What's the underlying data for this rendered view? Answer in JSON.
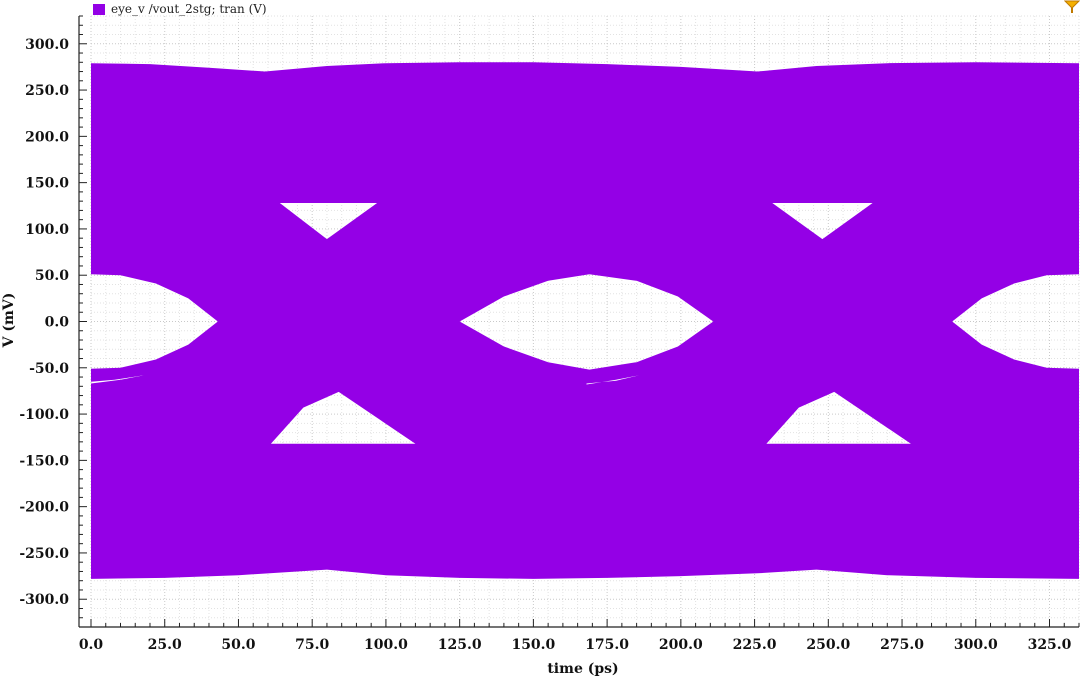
{
  "legend": {
    "label": "eye_v /vout_2stg; tran (V)",
    "color": "#9400e6"
  },
  "marker_icon": "cursor-marker-icon",
  "chart_data": {
    "type": "area",
    "subtype": "eye-diagram",
    "x_label": "time (ps)",
    "y_label": "V (mV)",
    "x_ticks": [
      "0.0",
      "25.0",
      "50.0",
      "75.0",
      "100.0",
      "125.0",
      "150.0",
      "175.0",
      "200.0",
      "225.0",
      "250.0",
      "275.0",
      "300.0",
      "325.0"
    ],
    "x_tick_values": [
      0,
      25,
      50,
      75,
      100,
      125,
      150,
      175,
      200,
      225,
      250,
      275,
      300,
      325
    ],
    "y_ticks": [
      "300.0",
      "250.0",
      "200.0",
      "150.0",
      "100.0",
      "50.0",
      "0.0",
      "-50.0",
      "-100.0",
      "-150.0",
      "-200.0",
      "-250.0",
      "-300.0"
    ],
    "y_tick_values": [
      300,
      250,
      200,
      150,
      100,
      50,
      0,
      -50,
      -100,
      -150,
      -200,
      -250,
      -300
    ],
    "xlim": [
      0,
      335
    ],
    "ylim": [
      -330,
      330
    ],
    "grid": true,
    "series": [
      {
        "name": "eye_v /vout_2stg; tran (V)",
        "color": "#9400e6",
        "upper_envelope": [
          [
            0,
            279
          ],
          [
            20,
            278
          ],
          [
            40,
            274
          ],
          [
            59,
            270
          ],
          [
            80,
            276
          ],
          [
            100,
            279
          ],
          [
            125,
            280
          ],
          [
            150,
            280
          ],
          [
            175,
            278
          ],
          [
            200,
            275
          ],
          [
            226,
            270
          ],
          [
            246,
            276
          ],
          [
            270,
            279
          ],
          [
            300,
            280
          ],
          [
            335,
            279
          ]
        ],
        "lower_envelope": [
          [
            0,
            -278
          ],
          [
            25,
            -277
          ],
          [
            50,
            -274
          ],
          [
            80,
            -268
          ],
          [
            100,
            -274
          ],
          [
            125,
            -277
          ],
          [
            150,
            -278
          ],
          [
            175,
            -277
          ],
          [
            200,
            -275
          ],
          [
            226,
            -272
          ],
          [
            246,
            -268
          ],
          [
            270,
            -274
          ],
          [
            300,
            -277
          ],
          [
            335,
            -278
          ]
        ],
        "holes": [
          [
            [
              0,
              51
            ],
            [
              10,
              50
            ],
            [
              22,
              41
            ],
            [
              33,
              25
            ],
            [
              43,
              0
            ],
            [
              33,
              -25
            ],
            [
              22,
              -41
            ],
            [
              10,
              -50
            ],
            [
              0,
              -51
            ]
          ],
          [
            [
              0,
              -65
            ],
            [
              8,
              -63
            ],
            [
              18,
              -58
            ],
            [
              10,
              -63
            ],
            [
              0,
              -67
            ]
          ],
          [
            [
              64,
              128
            ],
            [
              97,
              128
            ],
            [
              80,
              89
            ]
          ],
          [
            [
              61,
              -132
            ],
            [
              110,
              -132
            ],
            [
              84,
              -76
            ],
            [
              72,
              -93
            ]
          ],
          [
            [
              125,
              0
            ],
            [
              140,
              27
            ],
            [
              155,
              44
            ],
            [
              169,
              51
            ],
            [
              185,
              44
            ],
            [
              199,
              27
            ],
            [
              211,
              0
            ],
            [
              199,
              -27
            ],
            [
              185,
              -44
            ],
            [
              169,
              -52
            ],
            [
              155,
              -44
            ],
            [
              140,
              -27
            ]
          ],
          [
            [
              168,
              -67
            ],
            [
              178,
              -64
            ],
            [
              186,
              -58
            ],
            [
              178,
              -63
            ],
            [
              168,
              -68
            ]
          ],
          [
            [
              231,
              128
            ],
            [
              265,
              128
            ],
            [
              248,
              89
            ]
          ],
          [
            [
              229,
              -132
            ],
            [
              278,
              -132
            ],
            [
              252,
              -76
            ],
            [
              240,
              -93
            ]
          ],
          [
            [
              292,
              0
            ],
            [
              302,
              25
            ],
            [
              313,
              41
            ],
            [
              324,
              50
            ],
            [
              335,
              51
            ],
            [
              335,
              -51
            ],
            [
              324,
              -50
            ],
            [
              313,
              -41
            ],
            [
              302,
              -25
            ]
          ]
        ]
      }
    ]
  }
}
